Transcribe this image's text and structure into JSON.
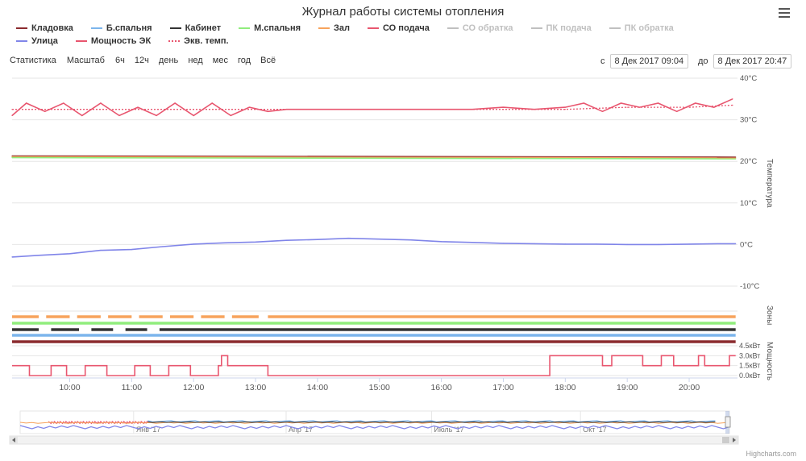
{
  "title": "Журнал работы системы отопления",
  "legend": [
    {
      "name": "Кладовка",
      "color": "#8b2b2e",
      "hidden": false,
      "dotted": false
    },
    {
      "name": "Б.спальня",
      "color": "#7cb5ec",
      "hidden": false,
      "dotted": false
    },
    {
      "name": "Кабинет",
      "color": "#333333",
      "hidden": false,
      "dotted": false
    },
    {
      "name": "М.спальня",
      "color": "#90ed7d",
      "hidden": false,
      "dotted": false
    },
    {
      "name": "Зал",
      "color": "#f7a35c",
      "hidden": false,
      "dotted": false
    },
    {
      "name": "СО подача",
      "color": "#e8566f",
      "hidden": false,
      "dotted": false
    },
    {
      "name": "СО обратка",
      "color": "#cccccc",
      "hidden": true,
      "dotted": false
    },
    {
      "name": "ПК подача",
      "color": "#cccccc",
      "hidden": true,
      "dotted": false
    },
    {
      "name": "ПК обратка",
      "color": "#cccccc",
      "hidden": true,
      "dotted": false
    },
    {
      "name": "Улица",
      "color": "#8085e9",
      "hidden": false,
      "dotted": false
    },
    {
      "name": "Мощность ЭК",
      "color": "#e8566f",
      "hidden": false,
      "dotted": false
    },
    {
      "name": "Экв. темп.",
      "color": "#e8566f",
      "hidden": false,
      "dotted": true
    }
  ],
  "range_selector": {
    "label": "Статистика",
    "zoom_label": "Масштаб",
    "buttons": [
      "6ч",
      "12ч",
      "день",
      "нед",
      "мес",
      "год",
      "Всё"
    ]
  },
  "date_range": {
    "from_label": "с",
    "from": "8 Дек 2017 09:04",
    "to_label": "до",
    "to": "8 Дек 2017 20:47"
  },
  "credits": "Highcharts.com",
  "chart_data": {
    "type": "line",
    "x_start": "09:04",
    "x_end": "20:47",
    "x_ticks": [
      "10:00",
      "11:00",
      "12:00",
      "13:00",
      "14:00",
      "15:00",
      "16:00",
      "17:00",
      "18:00",
      "19:00",
      "20:00"
    ],
    "x_tick_hours": [
      10,
      11,
      12,
      13,
      14,
      15,
      16,
      17,
      18,
      19,
      20
    ],
    "y_axis_temp": {
      "label": "Температура",
      "ticks": [
        "40°C",
        "30°C",
        "20°C",
        "10°C",
        "0°C",
        "-10°C"
      ],
      "tick_values": [
        40,
        30,
        20,
        10,
        0,
        -10
      ],
      "range": [
        -10,
        40
      ]
    },
    "y_axis_zones": {
      "label": "Зоны"
    },
    "y_axis_power": {
      "label": "Мощность",
      "ticks": [
        "4.5кВт",
        "3.0кВт",
        "1.5кВт",
        "0.0кВт"
      ],
      "tick_values": [
        4.5,
        3.0,
        1.5,
        0.0
      ],
      "range": [
        0,
        4.5
      ]
    },
    "series_temp": [
      {
        "name": "СО подача",
        "color": "#e8566f",
        "x": [
          9.07,
          9.3,
          9.6,
          9.9,
          10.2,
          10.5,
          10.8,
          11.1,
          11.4,
          11.7,
          12.0,
          12.3,
          12.6,
          12.9,
          13.2,
          13.5,
          14.0,
          14.5,
          15.0,
          15.5,
          16.0,
          16.5,
          17.0,
          17.5,
          18.0,
          18.3,
          18.6,
          18.9,
          19.2,
          19.5,
          19.8,
          20.1,
          20.4,
          20.7
        ],
        "values": [
          31,
          34,
          32,
          34,
          31,
          34,
          31,
          33,
          31,
          34,
          31,
          34,
          31,
          33,
          32,
          32.5,
          32.5,
          32.5,
          32.5,
          32.5,
          32.5,
          32.5,
          33,
          32.5,
          33,
          34,
          32,
          34,
          33,
          34,
          32,
          34,
          33,
          35
        ]
      },
      {
        "name": "Экв. темп.",
        "color": "#e8566f",
        "dotted": true,
        "x": [
          9.07,
          10,
          11,
          12,
          13,
          14,
          15,
          16,
          17,
          18,
          19,
          20,
          20.7
        ],
        "values": [
          32.5,
          32.5,
          32.5,
          32.5,
          32.5,
          32.5,
          32.5,
          32.5,
          32.5,
          32.5,
          33,
          33,
          33.5
        ]
      },
      {
        "name": "Кладовка",
        "color": "#8b2b2e",
        "x": [
          9.07,
          20.75
        ],
        "values": [
          21.3,
          21.0
        ]
      },
      {
        "name": "Зал",
        "color": "#f7a35c",
        "x": [
          9.07,
          20.75
        ],
        "values": [
          21.1,
          20.8
        ]
      },
      {
        "name": "М.спальня",
        "color": "#90ed7d",
        "x": [
          9.07,
          20.75
        ],
        "values": [
          20.9,
          20.6
        ]
      },
      {
        "name": "Улица",
        "color": "#8085e9",
        "x": [
          9.07,
          9.5,
          10.0,
          10.5,
          11.0,
          11.5,
          12.0,
          12.5,
          13.0,
          13.5,
          14.0,
          14.5,
          15.0,
          15.5,
          16.0,
          16.5,
          17.0,
          17.5,
          18.0,
          18.5,
          19.0,
          19.5,
          20.0,
          20.5,
          20.75
        ],
        "values": [
          -3.0,
          -2.6,
          -2.2,
          -1.4,
          -1.2,
          -0.5,
          0.1,
          0.4,
          0.6,
          1.0,
          1.2,
          1.5,
          1.3,
          1.1,
          0.7,
          0.5,
          0.3,
          0.2,
          0.1,
          0.1,
          0.0,
          0.0,
          0.1,
          0.2,
          0.2
        ]
      }
    ],
    "zones": [
      {
        "name": "Зал",
        "color": "#f7a35c",
        "segments": [
          [
            9.07,
            9.5
          ],
          [
            9.62,
            10.0
          ],
          [
            10.12,
            10.5
          ],
          [
            10.62,
            11.0
          ],
          [
            11.12,
            11.5
          ],
          [
            11.62,
            12.0
          ],
          [
            12.12,
            12.5
          ],
          [
            12.62,
            13.05
          ],
          [
            13.2,
            20.75
          ]
        ]
      },
      {
        "name": "М.спальня",
        "color": "#90ed7d",
        "segments": [
          [
            9.07,
            20.75
          ]
        ]
      },
      {
        "name": "Кабинет",
        "color": "#333333",
        "segments": [
          [
            9.07,
            9.5
          ],
          [
            9.7,
            10.15
          ],
          [
            10.35,
            10.7
          ],
          [
            10.9,
            11.25
          ],
          [
            11.45,
            20.75
          ]
        ]
      },
      {
        "name": "Б.спальня",
        "color": "#7cb5ec",
        "segments": [
          [
            9.07,
            20.75
          ]
        ]
      },
      {
        "name": "Кладовка",
        "color": "#8b2b2e",
        "segments": [
          [
            9.07,
            20.75
          ]
        ]
      }
    ],
    "power": {
      "name": "Мощность ЭК",
      "color": "#e8566f",
      "x": [
        9.07,
        9.35,
        9.35,
        9.7,
        9.7,
        9.95,
        9.95,
        10.25,
        10.25,
        10.6,
        10.6,
        11.05,
        11.05,
        11.3,
        11.3,
        11.6,
        11.6,
        11.95,
        11.95,
        12.4,
        12.4,
        12.45,
        12.45,
        12.55,
        12.55,
        13.2,
        13.2,
        17.75,
        17.75,
        18.6,
        18.6,
        18.75,
        18.75,
        19.25,
        19.25,
        19.55,
        19.55,
        19.75,
        19.75,
        20.15,
        20.15,
        20.25,
        20.25,
        20.65,
        20.65,
        20.75
      ],
      "values": [
        1.5,
        1.5,
        0,
        0,
        1.5,
        1.5,
        0,
        0,
        1.5,
        1.5,
        0,
        0,
        1.5,
        1.5,
        0,
        0,
        1.5,
        1.5,
        0,
        0,
        1.5,
        1.5,
        3,
        3,
        1.5,
        1.5,
        0,
        0,
        3,
        3,
        1.5,
        1.5,
        3,
        3,
        1.5,
        1.5,
        3,
        3,
        1.5,
        1.5,
        3,
        3,
        1.5,
        1.5,
        3,
        3
      ]
    },
    "navigator": {
      "ticks": [
        "Янв '17",
        "Апр '17",
        "Июль '17",
        "Окт '17"
      ],
      "tick_fractions": [
        0.16,
        0.375,
        0.58,
        0.79
      ]
    }
  }
}
